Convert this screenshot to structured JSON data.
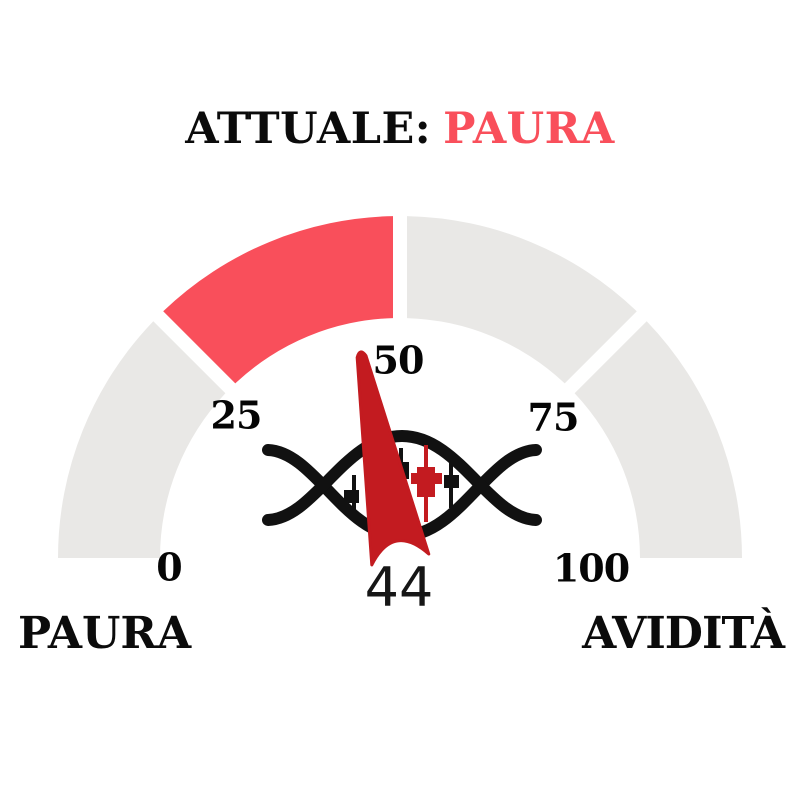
{
  "title": {
    "prefix": "ATTUALE:",
    "status": "PAURA"
  },
  "gauge": {
    "ticks": [
      "0",
      "25",
      "50",
      "75",
      "100"
    ],
    "value_label": "44",
    "min_label": "PAURA",
    "max_label": "AVIDITÀ"
  },
  "chart_data": {
    "type": "gauge",
    "title": "ATTUALE: PAURA",
    "value": 44,
    "min": 0,
    "max": 100,
    "current_zone_label": "PAURA",
    "axis_ticks": [
      0,
      25,
      50,
      75,
      100
    ],
    "end_labels": {
      "min": "PAURA",
      "max": "AVIDITÀ"
    },
    "segments": [
      {
        "from": 0,
        "to": 25,
        "color": "#e9e8e6",
        "active": false
      },
      {
        "from": 25,
        "to": 50,
        "color": "#f94f5b",
        "active": true
      },
      {
        "from": 50,
        "to": 75,
        "color": "#e9e8e6",
        "active": false
      },
      {
        "from": 75,
        "to": 100,
        "color": "#e9e8e6",
        "active": false
      }
    ],
    "colors": {
      "accent": "#f94f5b",
      "needle": "#c31b20",
      "inactive_segment": "#e9e8e6",
      "logo_ink": "#111111",
      "logo_red_candle": "#c31b20"
    },
    "layout_hints": {
      "arc_span_degrees": 180,
      "segment_gap": true,
      "needle_origin": "bottom-center"
    }
  },
  "logo": {
    "name": "dna-candlestick-logo"
  }
}
